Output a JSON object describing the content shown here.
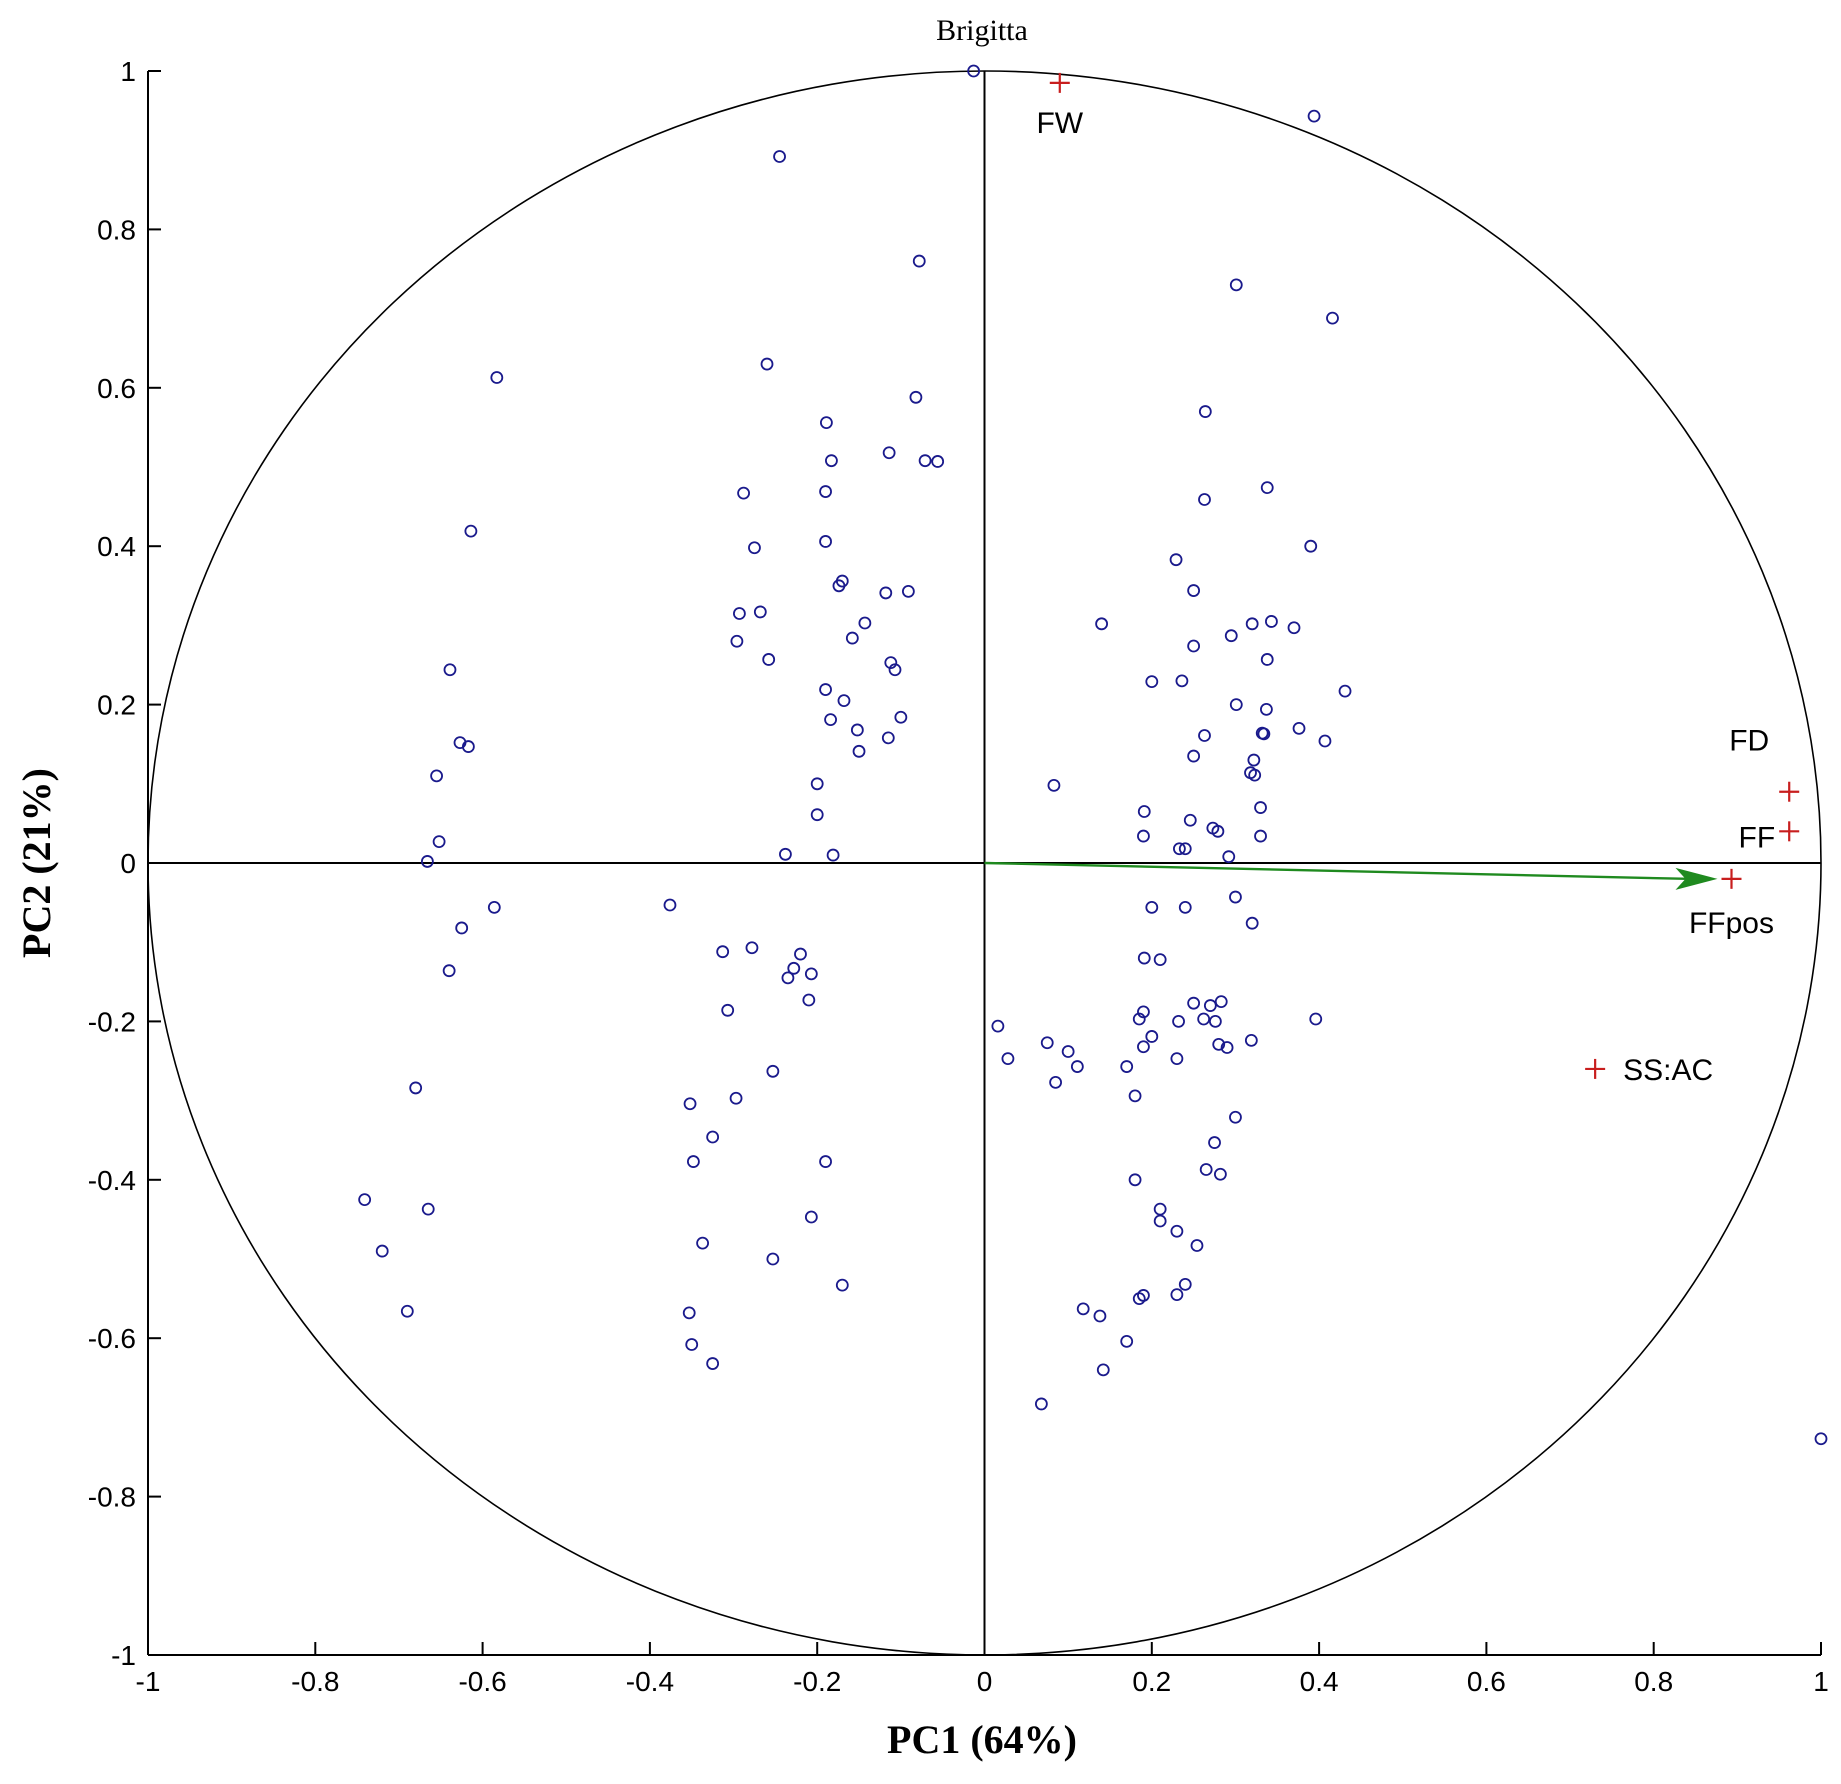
{
  "chart_data": {
    "type": "scatter",
    "title": "",
    "xlabel": "PC1 (64%)",
    "ylabel": "PC2 (21%)",
    "xlim": [
      -1,
      1
    ],
    "ylim": [
      -1,
      1
    ],
    "xticks": [
      "-1",
      "-0.8",
      "-0.6",
      "-0.4",
      "-0.2",
      "0",
      "0.2",
      "0.4",
      "0.6",
      "0.8",
      "1"
    ],
    "yticks": [
      "-1",
      "-0.8",
      "-0.6",
      "-0.4",
      "-0.2",
      "0",
      "0.2",
      "0.4",
      "0.6",
      "0.8",
      "1"
    ],
    "grid": false,
    "unit_circle": true,
    "colors": {
      "observations": "#1a1a8c",
      "variables": "#c81e1e",
      "arrow": "#1f8a1f",
      "axes": "#000000"
    },
    "annotation": "Brigitta",
    "observations": [
      [
        -0.013,
        1.0
      ],
      [
        0.394,
        0.943
      ],
      [
        -0.245,
        0.892
      ],
      [
        -0.078,
        0.76
      ],
      [
        0.301,
        0.73
      ],
      [
        0.416,
        0.688
      ],
      [
        -0.26,
        0.63
      ],
      [
        -0.583,
        0.613
      ],
      [
        -0.082,
        0.588
      ],
      [
        0.264,
        0.57
      ],
      [
        -0.189,
        0.556
      ],
      [
        -0.114,
        0.518
      ],
      [
        -0.183,
        0.508
      ],
      [
        -0.071,
        0.508
      ],
      [
        -0.056,
        0.507
      ],
      [
        0.338,
        0.474
      ],
      [
        -0.19,
        0.469
      ],
      [
        -0.288,
        0.467
      ],
      [
        0.263,
        0.459
      ],
      [
        -0.614,
        0.419
      ],
      [
        -0.19,
        0.406
      ],
      [
        -0.275,
        0.398
      ],
      [
        0.39,
        0.4
      ],
      [
        0.229,
        0.383
      ],
      [
        -0.17,
        0.356
      ],
      [
        -0.174,
        0.35
      ],
      [
        0.25,
        0.344
      ],
      [
        -0.091,
        0.343
      ],
      [
        -0.118,
        0.341
      ],
      [
        -0.268,
        0.317
      ],
      [
        -0.293,
        0.315
      ],
      [
        0.343,
        0.305
      ],
      [
        0.14,
        0.302
      ],
      [
        -0.143,
        0.303
      ],
      [
        0.32,
        0.302
      ],
      [
        0.37,
        0.297
      ],
      [
        0.295,
        0.287
      ],
      [
        -0.296,
        0.28
      ],
      [
        -0.158,
        0.284
      ],
      [
        0.25,
        0.274
      ],
      [
        -0.258,
        0.257
      ],
      [
        0.338,
        0.257
      ],
      [
        -0.112,
        0.253
      ],
      [
        -0.107,
        0.244
      ],
      [
        -0.639,
        0.244
      ],
      [
        0.2,
        0.229
      ],
      [
        0.236,
        0.23
      ],
      [
        0.431,
        0.217
      ],
      [
        -0.19,
        0.219
      ],
      [
        -0.168,
        0.205
      ],
      [
        0.301,
        0.2
      ],
      [
        0.337,
        0.194
      ],
      [
        -0.1,
        0.184
      ],
      [
        -0.184,
        0.181
      ],
      [
        0.376,
        0.17
      ],
      [
        -0.152,
        0.168
      ],
      [
        0.332,
        0.164
      ],
      [
        0.334,
        0.163
      ],
      [
        0.263,
        0.161
      ],
      [
        -0.115,
        0.158
      ],
      [
        0.407,
        0.154
      ],
      [
        -0.627,
        0.152
      ],
      [
        -0.617,
        0.147
      ],
      [
        -0.15,
        0.141
      ],
      [
        0.25,
        0.135
      ],
      [
        0.322,
        0.13
      ],
      [
        0.318,
        0.114
      ],
      [
        0.323,
        0.111
      ],
      [
        -0.655,
        0.11
      ],
      [
        -0.2,
        0.1
      ],
      [
        0.083,
        0.098
      ],
      [
        0.33,
        0.07
      ],
      [
        0.191,
        0.065
      ],
      [
        -0.2,
        0.061
      ],
      [
        0.246,
        0.054
      ],
      [
        0.273,
        0.044
      ],
      [
        0.279,
        0.04
      ],
      [
        0.19,
        0.034
      ],
      [
        0.33,
        0.034
      ],
      [
        -0.652,
        0.027
      ],
      [
        0.24,
        0.018
      ],
      [
        0.233,
        0.018
      ],
      [
        -0.238,
        0.011
      ],
      [
        -0.181,
        0.01
      ],
      [
        0.292,
        0.008
      ],
      [
        -0.666,
        0.002
      ],
      [
        0.3,
        -0.043
      ],
      [
        -0.376,
        -0.053
      ],
      [
        0.2,
        -0.056
      ],
      [
        0.24,
        -0.056
      ],
      [
        -0.586,
        -0.056
      ],
      [
        0.32,
        -0.076
      ],
      [
        -0.625,
        -0.082
      ],
      [
        -0.313,
        -0.112
      ],
      [
        -0.278,
        -0.107
      ],
      [
        -0.22,
        -0.115
      ],
      [
        -0.228,
        -0.133
      ],
      [
        -0.235,
        -0.145
      ],
      [
        0.191,
        -0.12
      ],
      [
        0.21,
        -0.122
      ],
      [
        -0.64,
        -0.136
      ],
      [
        -0.207,
        -0.14
      ],
      [
        -0.21,
        -0.173
      ],
      [
        0.25,
        -0.177
      ],
      [
        0.27,
        -0.18
      ],
      [
        0.283,
        -0.175
      ],
      [
        -0.307,
        -0.186
      ],
      [
        0.19,
        -0.188
      ],
      [
        0.185,
        -0.197
      ],
      [
        0.262,
        -0.197
      ],
      [
        0.276,
        -0.2
      ],
      [
        0.232,
        -0.2
      ],
      [
        0.396,
        -0.197
      ],
      [
        0.016,
        -0.206
      ],
      [
        0.2,
        -0.219
      ],
      [
        0.28,
        -0.229
      ],
      [
        0.319,
        -0.224
      ],
      [
        0.29,
        -0.233
      ],
      [
        0.075,
        -0.227
      ],
      [
        0.19,
        -0.232
      ],
      [
        0.1,
        -0.238
      ],
      [
        0.028,
        -0.247
      ],
      [
        0.23,
        -0.247
      ],
      [
        0.111,
        -0.257
      ],
      [
        0.17,
        -0.257
      ],
      [
        -0.253,
        -0.263
      ],
      [
        0.085,
        -0.277
      ],
      [
        -0.68,
        -0.284
      ],
      [
        0.18,
        -0.294
      ],
      [
        -0.297,
        -0.297
      ],
      [
        -0.352,
        -0.304
      ],
      [
        0.3,
        -0.321
      ],
      [
        -0.325,
        -0.346
      ],
      [
        0.275,
        -0.353
      ],
      [
        -0.348,
        -0.377
      ],
      [
        -0.19,
        -0.377
      ],
      [
        0.265,
        -0.387
      ],
      [
        0.282,
        -0.393
      ],
      [
        0.18,
        -0.4
      ],
      [
        -0.741,
        -0.425
      ],
      [
        -0.665,
        -0.437
      ],
      [
        0.21,
        -0.437
      ],
      [
        0.21,
        -0.452
      ],
      [
        -0.207,
        -0.447
      ],
      [
        0.23,
        -0.465
      ],
      [
        -0.337,
        -0.48
      ],
      [
        0.254,
        -0.483
      ],
      [
        -0.72,
        -0.49
      ],
      [
        -0.253,
        -0.5
      ],
      [
        0.24,
        -0.532
      ],
      [
        -0.17,
        -0.533
      ],
      [
        0.23,
        -0.545
      ],
      [
        0.19,
        -0.546
      ],
      [
        0.185,
        -0.55
      ],
      [
        -0.69,
        -0.566
      ],
      [
        0.118,
        -0.563
      ],
      [
        -0.353,
        -0.568
      ],
      [
        0.138,
        -0.572
      ],
      [
        0.17,
        -0.604
      ],
      [
        -0.35,
        -0.608
      ],
      [
        -0.325,
        -0.632
      ],
      [
        0.142,
        -0.64
      ],
      [
        0.068,
        -0.683
      ],
      [
        1.0,
        -0.727
      ]
    ],
    "variables": [
      {
        "name": "FW",
        "x": 0.09,
        "y": 0.985
      },
      {
        "name": "FD",
        "x": 0.962,
        "y": 0.09
      },
      {
        "name": "FF",
        "x": 0.962,
        "y": 0.04
      },
      {
        "name": "FFpos",
        "x": 0.893,
        "y": -0.02
      },
      {
        "name": "SS:AC",
        "x": 0.73,
        "y": -0.26
      }
    ],
    "arrow": {
      "from": [
        0,
        0
      ],
      "to": [
        0.893,
        -0.02
      ]
    }
  }
}
